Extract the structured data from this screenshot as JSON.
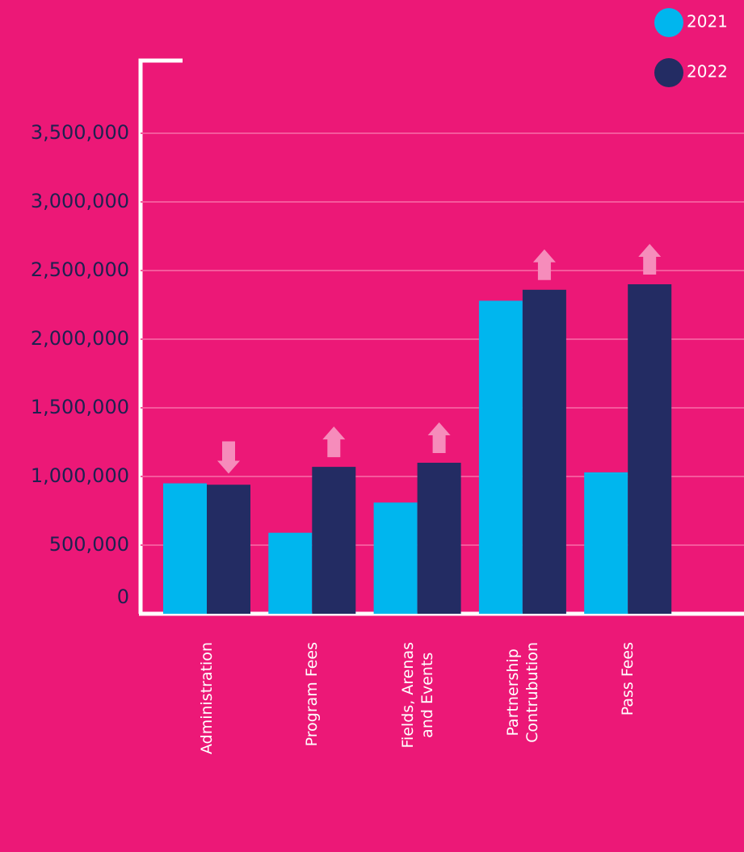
{
  "chart_data": {
    "type": "bar",
    "categories": [
      "Administration",
      "Program Fees",
      "Fields, Arenas\nand Events",
      "Partnership\nContrubution",
      "Pass Fees"
    ],
    "series": [
      {
        "name": "2021",
        "color": "#00b6ee",
        "values": [
          950000,
          590000,
          810000,
          2280000,
          1030000
        ]
      },
      {
        "name": "2022",
        "color": "#232c63",
        "values": [
          940000,
          1070000,
          1100000,
          2360000,
          2400000
        ]
      }
    ],
    "ylim": [
      0,
      4000000
    ],
    "yticks": [
      0,
      {
        "value": 500000,
        "label": "500,000"
      },
      {
        "value": 1000000,
        "label": "1,000,000"
      },
      {
        "value": 1500000,
        "label": "1,500,000"
      },
      {
        "value": 2000000,
        "label": "2,000,000"
      },
      {
        "value": 2500000,
        "label": "2,500,000"
      },
      {
        "value": 3000000,
        "label": "3,000,000"
      },
      {
        "value": 3500000,
        "label": "3,500,000"
      }
    ],
    "grid": true
  }
}
